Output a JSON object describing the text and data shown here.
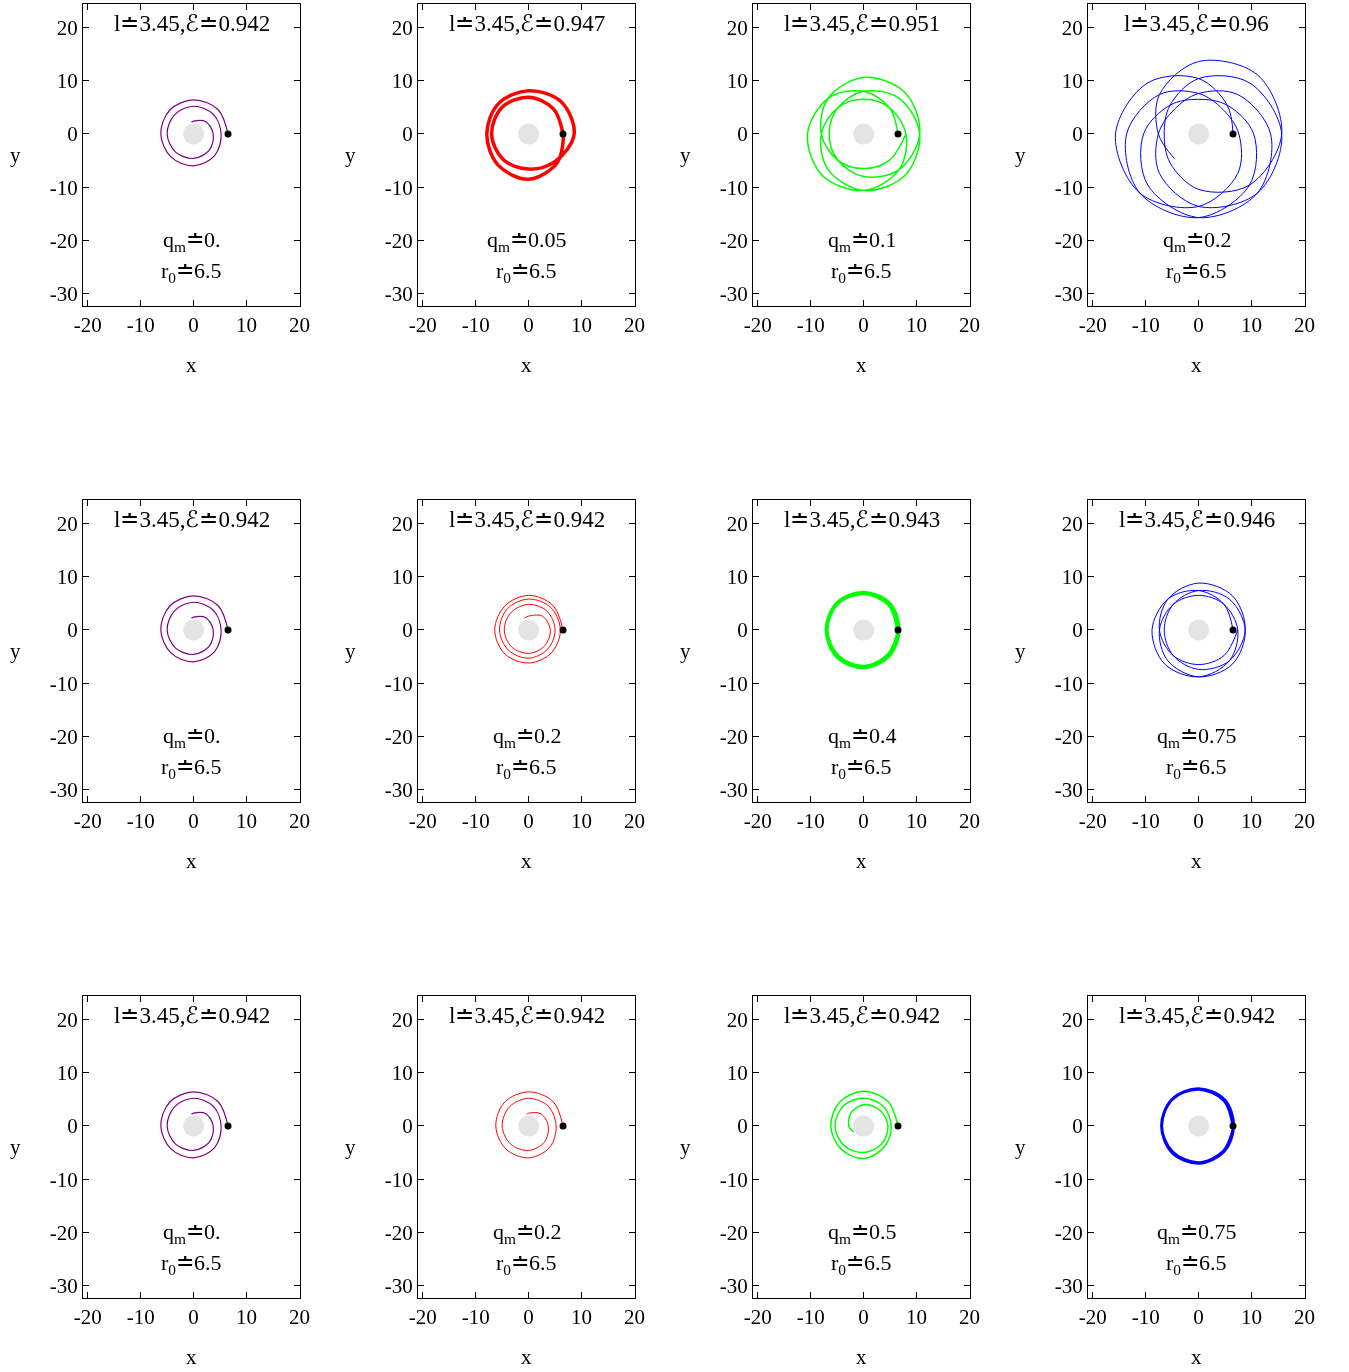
{
  "chart_data": [
    {
      "type": "line",
      "title": "l≐3.45,ℰ≐0.942",
      "xlabel": "x",
      "ylabel": "y",
      "annotations": [
        "q$_{m}$≐0.",
        "r$_{0}$≐6.5"
      ],
      "xlim": [
        -20.9,
        20.1
      ],
      "ylim": [
        -32.3,
        24.4
      ],
      "xticks": [
        -20,
        -10,
        0,
        10,
        20
      ],
      "yticks": [
        -30,
        -20,
        -10,
        0,
        10,
        20
      ],
      "series": [
        {
          "type": "bubble",
          "x": [
            0
          ],
          "values": [
            0
          ],
          "sizes": [
            1
          ],
          "color": "#d9d9d9"
        },
        {
          "color": "#800080",
          "x": [
            6.5,
            4.6,
            0,
            -4.5,
            -6.2,
            -4.3,
            0,
            4,
            5.2,
            3.7,
            0,
            -3.6,
            -5,
            -3.4,
            0,
            3,
            3.7,
            2.3,
            0,
            -0.4
          ],
          "values": [
            0,
            4.6,
            6.4,
            4.5,
            0,
            -4.3,
            -6,
            -4,
            0,
            3.7,
            5.2,
            3.6,
            0,
            -3.4,
            -4.6,
            -3,
            0,
            2.3,
            2.4,
            2.2
          ]
        },
        {
          "type": "scatter",
          "x": [
            6.5
          ],
          "values": [
            0
          ],
          "color": "#000000"
        }
      ]
    },
    {
      "type": "line",
      "title": "l≐3.45,ℰ≐0.947",
      "xlabel": "x",
      "ylabel": "y",
      "annotations": [
        "q$_{m}$≐0.05",
        "r$_{0}$≐6.5"
      ],
      "xlim": [
        -20.9,
        20.1
      ],
      "ylim": [
        -32.3,
        24.4
      ],
      "xticks": [
        -20,
        -10,
        0,
        10,
        20
      ],
      "yticks": [
        -30,
        -20,
        -10,
        0,
        10,
        20
      ],
      "series": [
        {
          "type": "bubble",
          "x": [
            0
          ],
          "values": [
            0
          ],
          "sizes": [
            1
          ],
          "color": "#d9d9d9"
        },
        {
          "color": "#ff0000",
          "x": [
            6.5,
            4.7,
            0,
            -5,
            -7,
            -4.8,
            0,
            5.1,
            8.6,
            6.1,
            0,
            -5.7,
            -7.9,
            -5.8,
            0,
            5.4,
            6.6
          ],
          "values": [
            0,
            4.7,
            6.9,
            5,
            0,
            -4.8,
            -6.6,
            -5.1,
            0,
            6.1,
            8.1,
            5.7,
            0,
            -5.8,
            -8.5,
            -5.4,
            -0.3
          ]
        },
        {
          "type": "scatter",
          "x": [
            6.5
          ],
          "values": [
            0
          ],
          "color": "#000000"
        }
      ]
    },
    {
      "type": "line",
      "title": "l≐3.45,ℰ≐0.951",
      "xlabel": "x",
      "ylabel": "y",
      "annotations": [
        "q$_{m}$≐0.1",
        "r$_{0}$≐6.5"
      ],
      "xlim": [
        -20.9,
        20.1
      ],
      "ylim": [
        -32.3,
        24.4
      ],
      "xticks": [
        -20,
        -10,
        0,
        10,
        20
      ],
      "yticks": [
        -30,
        -20,
        -10,
        0,
        10,
        20
      ],
      "series": [
        {
          "type": "bubble",
          "x": [
            0
          ],
          "values": [
            0
          ],
          "sizes": [
            1
          ],
          "color": "#d9d9d9"
        },
        {
          "color": "#00ff00",
          "x": [
            6.5,
            4.9,
            0,
            -6.7,
            -10.6,
            -7.8,
            0,
            6.7,
            8,
            4.9,
            0,
            -4.9,
            -8,
            -6.7,
            0,
            7.8,
            10.6,
            6.7,
            0,
            -4.9,
            -6.5,
            -4.9,
            0,
            6.7,
            10.6,
            7.8,
            0,
            -6.7,
            -8,
            -4.9,
            0,
            4.9,
            8
          ],
          "values": [
            0,
            4.9,
            8,
            6.7,
            0,
            -7.8,
            -10.6,
            -6.7,
            0,
            4.9,
            6.5,
            4.9,
            0,
            -6.7,
            -10.6,
            -7.8,
            0,
            6.7,
            8,
            4.9,
            0,
            -4.9,
            -8,
            -6.7,
            0,
            7.8,
            10.6,
            6.7,
            0,
            -4.9,
            -6.5,
            -4.9,
            0
          ]
        },
        {
          "type": "scatter",
          "x": [
            6.5
          ],
          "values": [
            0
          ],
          "color": "#000000"
        }
      ]
    },
    {
      "type": "line",
      "title": "l≐3.45,ℰ≐0.96",
      "xlabel": "x",
      "ylabel": "y",
      "annotations": [
        "q$_{m}$≐0.2",
        "r$_{0}$≐6.5"
      ],
      "xlim": [
        -20.9,
        20.1
      ],
      "ylim": [
        -32.3,
        24.4
      ],
      "xticks": [
        -20,
        -10,
        0,
        10,
        20
      ],
      "yticks": [
        -30,
        -20,
        -10,
        0,
        10,
        20
      ],
      "series": [
        {
          "type": "bubble",
          "x": [
            0
          ],
          "values": [
            0
          ],
          "sizes": [
            1
          ],
          "color": "#d9d9d9"
        },
        {
          "color": "#0000ff",
          "x": [
            6.5,
            5.4,
            0,
            -9.6,
            -15.7,
            -11.1,
            0,
            7.4,
            7.6,
            4.6,
            0,
            -7.4,
            -13.6,
            -11.1,
            0,
            9.6,
            10.4,
            5.4,
            0,
            -5.4,
            -10.4,
            -9.6,
            0,
            11.1,
            13.6,
            7.4,
            0,
            -4.6,
            -7.6,
            -7.4,
            0,
            11.1,
            15.7,
            9.6,
            0,
            -5.4,
            -6.5,
            -5.4,
            0,
            9.6,
            15.7,
            11.1,
            0,
            -7.4,
            -7.6,
            -4.6
          ],
          "values": [
            0,
            5.4,
            10.4,
            9.6,
            0,
            -11.1,
            -13.6,
            -7.4,
            0,
            4.6,
            7.6,
            7.4,
            0,
            -11.1,
            -15.7,
            -9.6,
            0,
            5.4,
            6.5,
            5.4,
            0,
            -9.6,
            -15.7,
            -11.1,
            0,
            7.4,
            7.6,
            4.6,
            0,
            -7.4,
            -13.6,
            -11.1,
            0,
            9.6,
            10.4,
            5.4,
            0,
            -5.4,
            -10.4,
            -9.6,
            0,
            11.1,
            13.6,
            7.4,
            0,
            -4.6
          ]
        },
        {
          "type": "scatter",
          "x": [
            6.5
          ],
          "values": [
            0
          ],
          "color": "#000000"
        }
      ]
    },
    {
      "type": "line",
      "title": "l≐3.45,ℰ≐0.942",
      "xlabel": "x",
      "ylabel": "y",
      "annotations": [
        "q$_{m}$≐0.",
        "r$_{0}$≐6.5"
      ],
      "xlim": [
        -20.9,
        20.1
      ],
      "ylim": [
        -32.3,
        24.4
      ],
      "xticks": [
        -20,
        -10,
        0,
        10,
        20
      ],
      "yticks": [
        -30,
        -20,
        -10,
        0,
        10,
        20
      ],
      "series": [
        {
          "type": "bubble",
          "x": [
            0
          ],
          "values": [
            0
          ],
          "sizes": [
            1
          ],
          "color": "#d9d9d9"
        },
        {
          "color": "#800080",
          "x": [
            6.5,
            4.6,
            0,
            -4.5,
            -6.2,
            -4.3,
            0,
            4,
            5.2,
            3.7,
            0,
            -3.6,
            -5,
            -3.4,
            0,
            3,
            3.7,
            2.3,
            0,
            -0.4
          ],
          "values": [
            0,
            4.6,
            6.4,
            4.5,
            0,
            -4.3,
            -6,
            -4,
            0,
            3.7,
            5.2,
            3.6,
            0,
            -3.4,
            -4.6,
            -3,
            0,
            2.3,
            2.4,
            2.2
          ]
        },
        {
          "type": "scatter",
          "x": [
            6.5
          ],
          "values": [
            0
          ],
          "color": "#000000"
        }
      ]
    },
    {
      "type": "line",
      "title": "l≐3.45,ℰ≐0.942",
      "xlabel": "x",
      "ylabel": "y",
      "annotations": [
        "q$_{m}$≐0.2",
        "r$_{0}$≐6.5"
      ],
      "xlim": [
        -20.9,
        20.1
      ],
      "ylim": [
        -32.3,
        24.4
      ],
      "xticks": [
        -20,
        -10,
        0,
        10,
        20
      ],
      "yticks": [
        -30,
        -20,
        -10,
        0,
        10,
        20
      ],
      "series": [
        {
          "type": "bubble",
          "x": [
            0
          ],
          "values": [
            0
          ],
          "sizes": [
            1
          ],
          "color": "#d9d9d9"
        },
        {
          "color": "#ff0000",
          "x": [
            6.5,
            4.6,
            0,
            -4.5,
            -6.4,
            -4.5,
            0,
            4.3,
            6,
            4.2,
            0,
            -4,
            -5.5,
            -3.8,
            0,
            3.6,
            5,
            3.5,
            0,
            -3.3,
            -4.6,
            -3.2,
            0,
            3,
            4.1,
            2.6,
            0,
            -0.8
          ],
          "values": [
            0,
            4.6,
            6.5,
            4.5,
            0,
            -4.5,
            -6.2,
            -4.3,
            0,
            4.2,
            5.8,
            4,
            0,
            -3.8,
            -5.3,
            -3.6,
            0,
            3.5,
            4.8,
            3.3,
            0,
            -3.2,
            -4.4,
            -3,
            0,
            2.6,
            2.6,
            2.2
          ]
        },
        {
          "type": "scatter",
          "x": [
            6.5
          ],
          "values": [
            0
          ],
          "color": "#000000"
        }
      ]
    },
    {
      "type": "line",
      "title": "l≐3.45,ℰ≐0.943",
      "xlabel": "x",
      "ylabel": "y",
      "annotations": [
        "q$_{m}$≐0.4",
        "r$_{0}$≐6.5"
      ],
      "xlim": [
        -20.9,
        20.1
      ],
      "ylim": [
        -32.3,
        24.4
      ],
      "xticks": [
        -20,
        -10,
        0,
        10,
        20
      ],
      "yticks": [
        -30,
        -20,
        -10,
        0,
        10,
        20
      ],
      "series": [
        {
          "type": "bubble",
          "x": [
            0
          ],
          "values": [
            0
          ],
          "sizes": [
            1
          ],
          "color": "#d9d9d9"
        },
        {
          "color": "#00ff00",
          "x": [
            6.5,
            4.8,
            0,
            -5,
            -7,
            -5,
            0,
            4.8,
            6.6,
            4.9,
            0,
            -5,
            -7,
            -4.9,
            0,
            4.7,
            6.6
          ],
          "values": [
            0,
            4.8,
            6.9,
            5,
            0,
            -5,
            -7,
            -4.8,
            0,
            4.9,
            7,
            5,
            0,
            -4.9,
            -6.9,
            -4.7,
            -0.3
          ]
        },
        {
          "type": "scatter",
          "x": [
            6.5
          ],
          "values": [
            0
          ],
          "color": "#000000"
        }
      ]
    },
    {
      "type": "line",
      "title": "l≐3.45,ℰ≐0.946",
      "xlabel": "x",
      "ylabel": "y",
      "annotations": [
        "q$_{m}$≐0.75",
        "r$_{0}$≐6.5"
      ],
      "xlim": [
        -20.9,
        20.1
      ],
      "ylim": [
        -32.3,
        24.4
      ],
      "xticks": [
        -20,
        -10,
        0,
        10,
        20
      ],
      "yticks": [
        -30,
        -20,
        -10,
        0,
        10,
        20
      ],
      "series": [
        {
          "type": "bubble",
          "x": [
            0
          ],
          "values": [
            0
          ],
          "sizes": [
            1
          ],
          "color": "#d9d9d9"
        },
        {
          "color": "#0000ff",
          "x": [
            6.5,
            4.8,
            0,
            -5.8,
            -8.8,
            -6.4,
            0,
            5.8,
            7.4,
            4.8,
            0,
            -4.8,
            -7.4,
            -5.8,
            0,
            6.4,
            8.8,
            5.8,
            0,
            -4.8,
            -6.5,
            -4.8,
            0,
            5.8,
            8.8,
            6.4,
            0,
            -5.8,
            -7.4,
            -4.8,
            0,
            4.8,
            7.4
          ],
          "values": [
            0,
            4.8,
            7.4,
            5.8,
            0,
            -6.4,
            -8.8,
            -5.8,
            0,
            4.8,
            6.5,
            4.8,
            0,
            -5.8,
            -8.8,
            -6.4,
            0,
            5.8,
            7.4,
            4.8,
            0,
            -4.8,
            -7.4,
            -5.8,
            0,
            6.4,
            8.8,
            5.8,
            0,
            -4.8,
            -6.5,
            -4.8,
            0
          ]
        },
        {
          "type": "scatter",
          "x": [
            6.5
          ],
          "values": [
            0
          ],
          "color": "#000000"
        }
      ]
    },
    {
      "type": "line",
      "title": "l≐3.45,ℰ≐0.942",
      "xlabel": "x",
      "ylabel": "y",
      "annotations": [
        "q$_{m}$≐0.",
        "r$_{0}$≐6.5"
      ],
      "xlim": [
        -20.9,
        20.1
      ],
      "ylim": [
        -32.3,
        24.4
      ],
      "xticks": [
        -20,
        -10,
        0,
        10,
        20
      ],
      "yticks": [
        -30,
        -20,
        -10,
        0,
        10,
        20
      ],
      "series": [
        {
          "type": "bubble",
          "x": [
            0
          ],
          "values": [
            0
          ],
          "sizes": [
            1
          ],
          "color": "#d9d9d9"
        },
        {
          "color": "#800080",
          "x": [
            6.5,
            4.6,
            0,
            -4.5,
            -6.2,
            -4.3,
            0,
            4,
            5.2,
            3.7,
            0,
            -3.6,
            -5,
            -3.4,
            0,
            3,
            3.7,
            2.3,
            0,
            -0.4
          ],
          "values": [
            0,
            4.6,
            6.4,
            4.5,
            0,
            -4.3,
            -6,
            -4,
            0,
            3.7,
            5.2,
            3.6,
            0,
            -3.4,
            -4.6,
            -3,
            0,
            2.3,
            2.4,
            2.2
          ]
        },
        {
          "type": "scatter",
          "x": [
            6.5
          ],
          "values": [
            0
          ],
          "color": "#000000"
        }
      ]
    },
    {
      "type": "line",
      "title": "l≐3.45,ℰ≐0.942",
      "xlabel": "x",
      "ylabel": "y",
      "annotations": [
        "q$_{m}$≐0.2",
        "r$_{0}$≐6.5"
      ],
      "xlim": [
        -20.9,
        20.1
      ],
      "ylim": [
        -32.3,
        24.4
      ],
      "xticks": [
        -20,
        -10,
        0,
        10,
        20
      ],
      "yticks": [
        -30,
        -20,
        -10,
        0,
        10,
        20
      ],
      "series": [
        {
          "type": "bubble",
          "x": [
            0
          ],
          "values": [
            0
          ],
          "sizes": [
            1
          ],
          "color": "#d9d9d9"
        },
        {
          "color": "#ff0000",
          "x": [
            6.5,
            4.6,
            0,
            -4.5,
            -6.2,
            -4.3,
            0,
            4,
            5.2,
            3.7,
            0,
            -3.6,
            -5,
            -3.4,
            0,
            3,
            3.7,
            2.3,
            0,
            -0.4
          ],
          "values": [
            0,
            4.6,
            6.4,
            4.5,
            0,
            -4.3,
            -6,
            -4,
            0,
            3.7,
            5.2,
            3.6,
            0,
            -3.4,
            -4.6,
            -3,
            0,
            2.3,
            2.4,
            2.2
          ]
        },
        {
          "type": "scatter",
          "x": [
            6.5
          ],
          "values": [
            0
          ],
          "color": "#000000"
        }
      ]
    },
    {
      "type": "line",
      "title": "l≐3.45,ℰ≐0.942",
      "xlabel": "x",
      "ylabel": "y",
      "annotations": [
        "q$_{m}$≐0.5",
        "r$_{0}$≐6.5"
      ],
      "xlim": [
        -20.9,
        20.1
      ],
      "ylim": [
        -32.3,
        24.4
      ],
      "xticks": [
        -20,
        -10,
        0,
        10,
        20
      ],
      "yticks": [
        -30,
        -20,
        -10,
        0,
        10,
        20
      ],
      "series": [
        {
          "type": "bubble",
          "x": [
            0
          ],
          "values": [
            0
          ],
          "sizes": [
            1
          ],
          "color": "#d9d9d9"
        },
        {
          "color": "#00ff00",
          "x": [
            6.5,
            4.6,
            0,
            -4.5,
            -6.2,
            -4.3,
            0,
            3.9,
            5.2,
            3.7,
            0,
            -3.8,
            -5.4,
            -3.7,
            0,
            3.4,
            4.6,
            3,
            0,
            -2.4,
            -2.8,
            -1.9
          ],
          "values": [
            0,
            4.6,
            6.5,
            4.5,
            0,
            -4.3,
            -6.1,
            -3.9,
            0,
            3.7,
            5.2,
            3.8,
            0,
            -3.7,
            -5,
            -3.4,
            0,
            3,
            4,
            2.4,
            0,
            -1.1
          ]
        },
        {
          "type": "scatter",
          "x": [
            6.5
          ],
          "values": [
            0
          ],
          "color": "#000000"
        }
      ]
    },
    {
      "type": "line",
      "title": "l≐3.45,ℰ≐0.942",
      "xlabel": "x",
      "ylabel": "y",
      "annotations": [
        "q$_{m}$≐0.75",
        "r$_{0}$≐6.5"
      ],
      "xlim": [
        -20.9,
        20.1
      ],
      "ylim": [
        -32.3,
        24.4
      ],
      "xticks": [
        -20,
        -10,
        0,
        10,
        20
      ],
      "yticks": [
        -30,
        -20,
        -10,
        0,
        10,
        20
      ],
      "series": [
        {
          "type": "bubble",
          "x": [
            0
          ],
          "values": [
            0
          ],
          "sizes": [
            1
          ],
          "color": "#d9d9d9"
        },
        {
          "color": "#0000ff",
          "x": [
            6.5,
            4.8,
            0,
            -5,
            -7,
            -5,
            0,
            4.8,
            6.6,
            4.9,
            0,
            -5,
            -7,
            -4.9,
            0,
            4.7,
            6.6
          ],
          "values": [
            0,
            4.8,
            6.9,
            5,
            0,
            -5,
            -7,
            -4.8,
            0,
            4.9,
            7,
            5,
            0,
            -4.9,
            -6.9,
            -4.7,
            -0.3
          ]
        },
        {
          "type": "scatter",
          "x": [
            6.5
          ],
          "values": [
            0
          ],
          "color": "#000000"
        }
      ]
    }
  ]
}
